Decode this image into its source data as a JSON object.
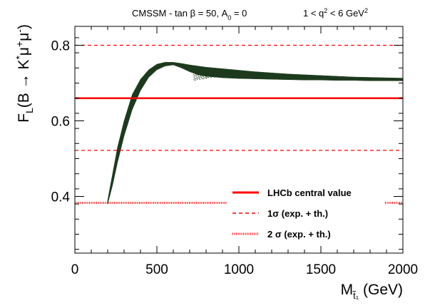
{
  "chart_data": {
    "type": "scatter",
    "header_left": "CMSSM - tan β = 50, A",
    "header_left_sub": "0",
    "header_left_end": " = 0",
    "header_right": "1 < q",
    "header_right_sup": "2",
    "header_right_mid": " < 6 GeV",
    "header_right_sup2": "2",
    "ylabel": {
      "main": "F",
      "sub": "L",
      "rest": "(B → K",
      "sup1": "*",
      "mu": "μ",
      "sup2": "+",
      "mu2": "μ",
      "sup3": "-",
      "close": ")"
    },
    "xlabel": {
      "main": "M",
      "sub": "t̃₁",
      "rest": " (GeV)"
    },
    "xlim": [
      0,
      2000
    ],
    "ylim": [
      0.25,
      0.85
    ],
    "xticks": [
      0,
      500,
      1000,
      1500,
      2000
    ],
    "xtick_labels": [
      "0",
      "500",
      "1000",
      "1500",
      "2000"
    ],
    "yticks": [
      0.4,
      0.6,
      0.8
    ],
    "ytick_labels": [
      "0.4",
      "0.6",
      "0.8"
    ],
    "reference_lines": {
      "central": 0.66,
      "one_sigma": [
        0.522,
        0.8
      ],
      "two_sigma": 0.383
    },
    "band": {
      "color": "#1e3a1e",
      "x": [
        200,
        230,
        260,
        300,
        350,
        400,
        450,
        500,
        550,
        600,
        650,
        700,
        750,
        800,
        900,
        1000,
        1100,
        1200,
        1300,
        1400,
        1500,
        1600,
        1700,
        1800,
        1900,
        2000
      ],
      "upper": [
        0.39,
        0.46,
        0.53,
        0.6,
        0.67,
        0.71,
        0.735,
        0.75,
        0.755,
        0.755,
        0.752,
        0.748,
        0.745,
        0.742,
        0.738,
        0.734,
        0.73,
        0.727,
        0.724,
        0.722,
        0.72,
        0.718,
        0.716,
        0.715,
        0.714,
        0.713
      ],
      "lower": [
        0.38,
        0.43,
        0.49,
        0.56,
        0.63,
        0.68,
        0.715,
        0.735,
        0.745,
        0.748,
        0.74,
        0.73,
        0.722,
        0.718,
        0.714,
        0.712,
        0.711,
        0.71,
        0.709,
        0.708,
        0.708,
        0.707,
        0.707,
        0.706,
        0.706,
        0.706
      ]
    },
    "legend": {
      "position": "bottom-right",
      "entries": [
        {
          "label": "LHCb central value",
          "style": "solid"
        },
        {
          "label": "1σ (exp. + th.)",
          "style": "dashed"
        },
        {
          "label": "2 σ (exp. + th.)",
          "style": "dotted"
        }
      ]
    },
    "colors": {
      "reference": "#ff0000",
      "band": "#1e3a1e"
    }
  }
}
